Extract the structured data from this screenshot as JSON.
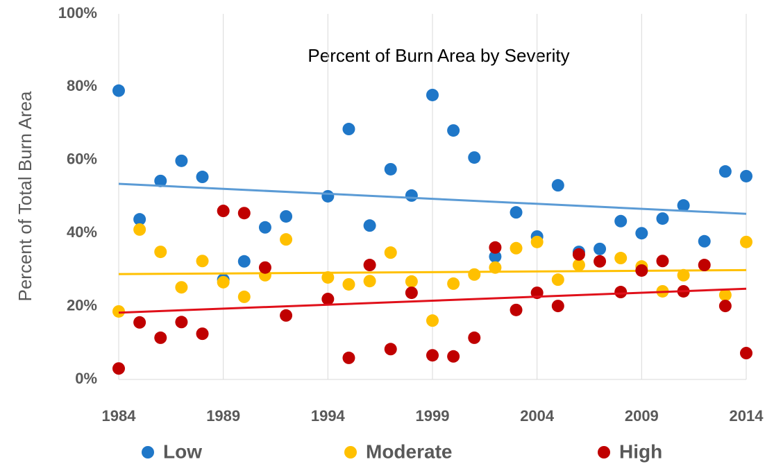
{
  "chart_data": {
    "type": "scatter",
    "title": "Percent of Burn Area by Severity",
    "y_label": "Percent of Total Burn Area",
    "x": [
      1984,
      1985,
      1986,
      1987,
      1988,
      1989,
      1990,
      1991,
      1992,
      1994,
      1995,
      1996,
      1997,
      1998,
      1999,
      2000,
      2001,
      2002,
      2003,
      2004,
      2005,
      2006,
      2007,
      2008,
      2009,
      2010,
      2011,
      2012,
      2013,
      2014
    ],
    "series": [
      {
        "name": "Low",
        "color": "#1f77c8",
        "trend_color": "#5b9bd5",
        "values": [
          79,
          43.8,
          54.3,
          59.8,
          55.4,
          27.3,
          32.3,
          41.6,
          44.6,
          50.1,
          68.5,
          42.1,
          57.5,
          50.3,
          77.8,
          68.1,
          60.7,
          33.6,
          45.7,
          39.1,
          53.1,
          34.9,
          35.7,
          43.3,
          40.0,
          44.0,
          47.6,
          37.8,
          56.9,
          55.6
        ]
      },
      {
        "name": "Moderate",
        "color": "#ffc000",
        "trend_color": "#ffc000",
        "values": [
          18.6,
          41.0,
          34.9,
          25.2,
          32.4,
          26.6,
          22.6,
          28.5,
          38.3,
          27.9,
          26.0,
          26.9,
          34.7,
          26.8,
          16.1,
          26.2,
          28.7,
          30.6,
          35.9,
          37.6,
          27.3,
          31.3,
          null,
          33.2,
          30.9,
          24.1,
          28.5,
          null,
          23.1,
          37.6
        ]
      },
      {
        "name": "High",
        "color": "#c00000",
        "trend_color": "#e0101a",
        "values": [
          3.0,
          15.6,
          11.4,
          15.7,
          12.5,
          46.1,
          45.5,
          30.6,
          17.5,
          22.0,
          5.9,
          31.3,
          8.3,
          23.7,
          6.6,
          6.3,
          11.4,
          36.1,
          19.0,
          23.7,
          20.1,
          34.2,
          32.3,
          23.9,
          29.8,
          32.4,
          24.1,
          31.3,
          20.1,
          7.2
        ]
      }
    ],
    "xlim": [
      1984,
      2014
    ],
    "xticks": [
      1984,
      1989,
      1994,
      1999,
      2004,
      2009,
      2014
    ],
    "ylim": [
      0,
      100
    ],
    "yticks": [
      {
        "value": 0,
        "label": "0%"
      },
      {
        "value": 20,
        "label": "20%"
      },
      {
        "value": 40,
        "label": "40%"
      },
      {
        "value": 60,
        "label": "60%"
      },
      {
        "value": 80,
        "label": "80%"
      },
      {
        "value": 100,
        "label": "100%"
      }
    ],
    "grid": "x",
    "trendline": true,
    "legend": "bottom"
  }
}
